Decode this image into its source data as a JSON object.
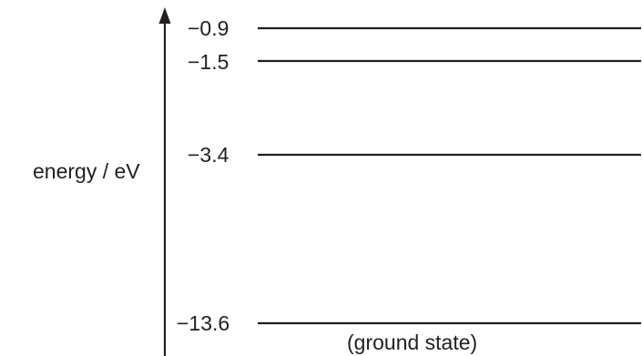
{
  "axis": {
    "label": "energy / eV"
  },
  "levels": [
    {
      "value_label": "−0.9",
      "energy": -0.9,
      "note": ""
    },
    {
      "value_label": "−1.5",
      "energy": -1.5,
      "note": ""
    },
    {
      "value_label": "−3.4",
      "energy": -3.4,
      "note": ""
    },
    {
      "value_label": "−13.6",
      "energy": -13.6,
      "note": "(ground state)"
    }
  ],
  "colors": {
    "ink": "#231f20"
  }
}
